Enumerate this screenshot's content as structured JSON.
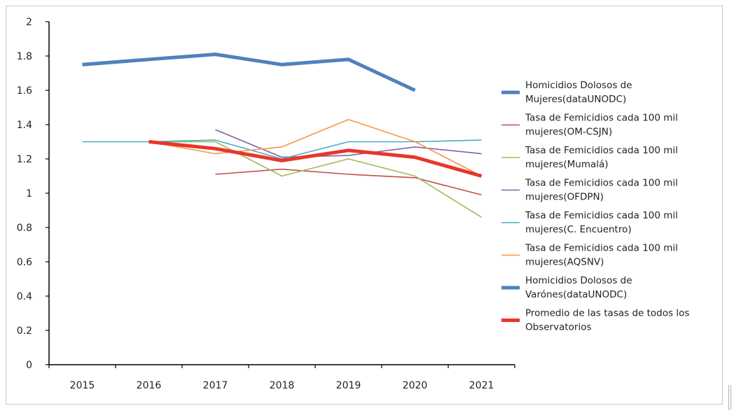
{
  "chart_data": {
    "type": "line",
    "title": "",
    "xlabel": "",
    "ylabel": "",
    "categories": [
      "2015",
      "2016",
      "2017",
      "2018",
      "2019",
      "2020",
      "2021"
    ],
    "ylim": [
      0,
      2
    ],
    "yticks": [
      "0",
      "0.2",
      "0.4",
      "0.6",
      "0.8",
      "1",
      "1.2",
      "1.4",
      "1.6",
      "1.8",
      "2"
    ],
    "grid": false,
    "legend_position": "right",
    "series": [
      {
        "name_lines": [
          "Homicidios Dolosos de",
          "Mujeres(dataUNODC)"
        ],
        "color": "#4f81bd",
        "weight": "thick",
        "values": [
          1.75,
          1.78,
          1.81,
          1.75,
          1.78,
          1.6,
          null
        ]
      },
      {
        "name_lines": [
          "Tasa de Femicidios cada 100 mil",
          "mujeres(OM-CSJN)"
        ],
        "color": "#c0504d",
        "weight": "thin",
        "values": [
          null,
          null,
          1.11,
          1.14,
          1.11,
          1.09,
          0.99
        ]
      },
      {
        "name_lines": [
          "Tasa de Femicidios cada 100 mil",
          "mujeres(Mumalá)"
        ],
        "color": "#9bbb59",
        "weight": "thin",
        "values": [
          null,
          1.3,
          1.3,
          1.1,
          1.2,
          1.1,
          0.86
        ]
      },
      {
        "name_lines": [
          "Tasa de Femicidios cada 100 mil",
          "mujeres(OFDPN)"
        ],
        "color": "#8064a2",
        "weight": "thin",
        "values": [
          null,
          null,
          1.37,
          1.21,
          1.22,
          1.27,
          1.23
        ]
      },
      {
        "name_lines": [
          "Tasa de Femicidios cada 100 mil",
          "mujeres(C. Encuentro)"
        ],
        "color": "#4bacc6",
        "weight": "thin",
        "values": [
          1.3,
          1.3,
          1.31,
          1.2,
          1.3,
          1.3,
          1.31
        ]
      },
      {
        "name_lines": [
          "Tasa de Femicidios cada 100 mil",
          "mujeres(AQSNV)"
        ],
        "color": "#f79646",
        "weight": "thin",
        "values": [
          null,
          1.3,
          1.23,
          1.27,
          1.43,
          1.3,
          1.1
        ]
      },
      {
        "name_lines": [
          "Homicidios Dolosos de",
          "Varónes(dataUNODC)"
        ],
        "color": "#4f81bd",
        "weight": "thick",
        "values": [
          null,
          null,
          null,
          null,
          null,
          null,
          null
        ]
      },
      {
        "name_lines": [
          "Promedio de las tasas de todos los",
          "Observatorios"
        ],
        "color": "#e8362b",
        "weight": "thick",
        "values": [
          null,
          1.3,
          1.26,
          1.19,
          1.25,
          1.21,
          1.1
        ]
      }
    ]
  }
}
